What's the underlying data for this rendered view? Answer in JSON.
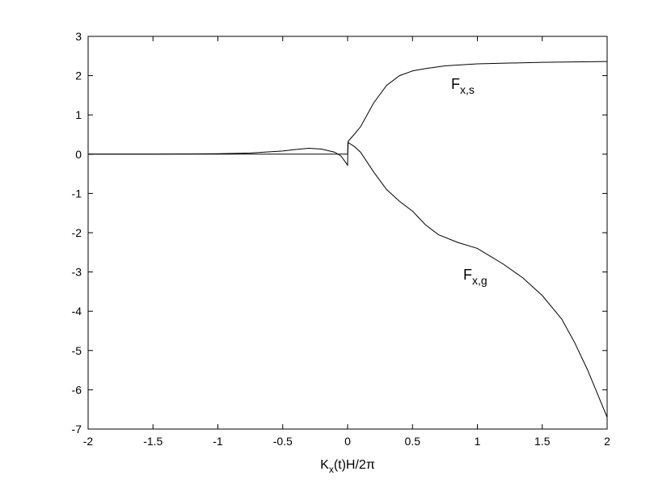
{
  "chart_data": {
    "type": "line",
    "series": [
      {
        "color": "#000000",
        "x": [
          -2,
          -1.5,
          -1,
          -0.5,
          -0.2,
          0,
          0.005,
          0.05,
          0.1,
          0.2,
          0.3,
          0.4,
          0.5,
          0.6,
          0.75,
          1,
          1.25,
          1.5,
          1.75,
          2
        ],
        "values": [
          0,
          0,
          0,
          0,
          0,
          0,
          0.33,
          0.5,
          0.7,
          1.3,
          1.75,
          2.0,
          2.12,
          2.18,
          2.25,
          2.3,
          2.32,
          2.34,
          2.35,
          2.36
        ]
      },
      {
        "color": "#000000",
        "x": [
          -2,
          -1.5,
          -1,
          -0.75,
          -0.5,
          -0.4,
          -0.3,
          -0.2,
          -0.1,
          -0.05,
          0,
          0.002,
          0.05,
          0.1,
          0.2,
          0.3,
          0.4,
          0.5,
          0.6,
          0.7,
          0.85,
          1,
          1.1,
          1.2,
          1.35,
          1.5,
          1.65,
          1.75,
          1.85,
          1.95,
          2
        ],
        "values": [
          0,
          0,
          0.01,
          0.03,
          0.08,
          0.12,
          0.15,
          0.13,
          0.05,
          -0.05,
          -0.28,
          0.3,
          0.2,
          0.05,
          -0.45,
          -0.9,
          -1.2,
          -1.45,
          -1.8,
          -2.05,
          -2.25,
          -2.4,
          -2.6,
          -2.8,
          -3.15,
          -3.6,
          -4.2,
          -4.8,
          -5.5,
          -6.3,
          -6.7
        ]
      }
    ],
    "annotations": [
      {
        "base": "F",
        "subscript": "x,s"
      },
      {
        "base": "F",
        "subscript": "x,g"
      }
    ],
    "x_label": {
      "base": "K",
      "subscript": "x",
      "rest": "(t)H/2π"
    },
    "xlim": [
      -2,
      2
    ],
    "xticks": [
      -2,
      -1.5,
      -1,
      -0.5,
      0,
      0.5,
      1,
      1.5,
      2
    ],
    "ylim": [
      -7,
      3
    ],
    "yticks": [
      -7,
      -6,
      -5,
      -4,
      -3,
      -2,
      -1,
      0,
      1,
      2,
      3
    ]
  }
}
